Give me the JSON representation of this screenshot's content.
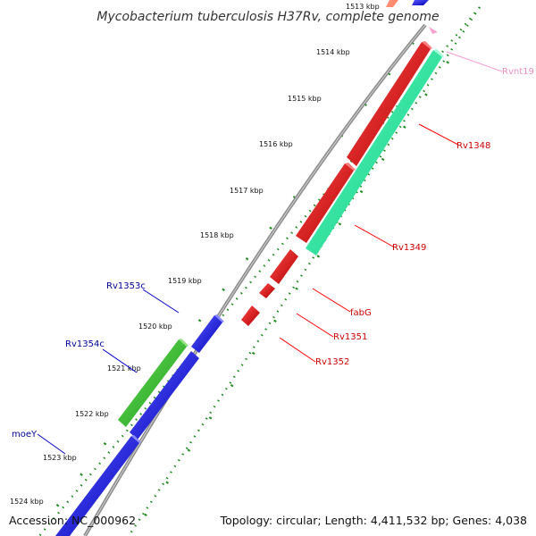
{
  "title": "Mycobacterium tuberculosis H37Rv, complete genome",
  "footer": {
    "accession": "Accession: NC_000962",
    "summary": "Topology: circular; Length: 4,411,532 bp; Genes: 4,038"
  },
  "colors": {
    "backbone": "#8a8a8a",
    "ticks": "#1e8a1e",
    "forward_gene": "#ff1010",
    "forward_other": "#22f0a0",
    "reverse_gene": "#1414ff",
    "reverse_other": "#33bb33",
    "rna": "#f4a0d0",
    "forward_label": "#cc0000",
    "reverse_label": "#000099",
    "rna_label": "#e890c0"
  },
  "kbp_labels": [
    "1513 kbp",
    "1514 kbp",
    "1515 kbp",
    "1516 kbp",
    "1517 kbp",
    "1518 kbp",
    "1519 kbp",
    "1520 kbp",
    "1521 kbp",
    "1522 kbp",
    "1523 kbp",
    "1524 kbp"
  ],
  "gene_labels": {
    "rvnt19": "Rvnt19",
    "rv1348": "Rv1348",
    "rv1349": "Rv1349",
    "fabg": "fabG",
    "rv1351": "Rv1351",
    "rv1352": "Rv1352",
    "rv1353c": "Rv1353c",
    "rv1354c": "Rv1354c",
    "moey": "moeY"
  }
}
